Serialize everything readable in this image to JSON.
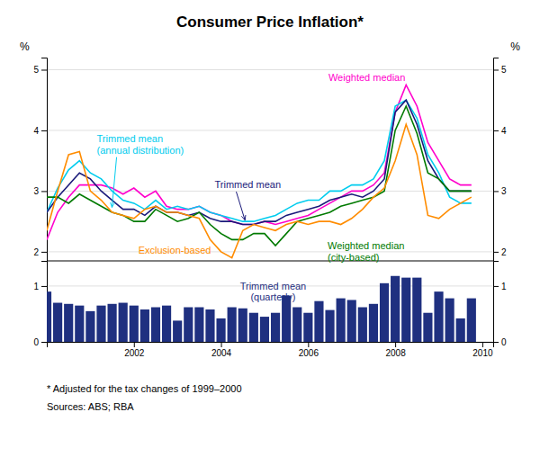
{
  "chart_data": [
    {
      "type": "line",
      "title": "Consumer Price Inflation*",
      "ylabel": "%",
      "y2label": "%",
      "x": [
        2000.0,
        2000.25,
        2000.5,
        2000.75,
        2001.0,
        2001.25,
        2001.5,
        2001.75,
        2002.0,
        2002.25,
        2002.5,
        2002.75,
        2003.0,
        2003.25,
        2003.5,
        2003.75,
        2004.0,
        2004.25,
        2004.5,
        2004.75,
        2005.0,
        2005.25,
        2005.5,
        2005.75,
        2006.0,
        2006.25,
        2006.5,
        2006.75,
        2007.0,
        2007.25,
        2007.5,
        2007.75,
        2008.0,
        2008.25,
        2008.5,
        2008.75,
        2009.0,
        2009.25,
        2009.5,
        2009.75
      ],
      "xlim": [
        2000.0,
        2010.25
      ],
      "ylim": [
        1.85,
        5.2
      ],
      "yticks": [
        2,
        3,
        4,
        5
      ],
      "y2lim": [
        1.85,
        5.2
      ],
      "y2ticks": [
        2,
        3,
        4,
        5
      ],
      "grid": true,
      "tick_labels": "y",
      "series": [
        {
          "name": "Weighted median",
          "color": "#FF00CC",
          "values": [
            2.2,
            2.65,
            2.9,
            3.1,
            3.1,
            3.1,
            3.05,
            2.95,
            3.05,
            2.9,
            3.0,
            2.75,
            2.7,
            2.7,
            2.75,
            2.65,
            2.6,
            2.5,
            2.45,
            2.45,
            2.5,
            2.45,
            2.5,
            2.55,
            2.6,
            2.7,
            2.8,
            2.9,
            3.0,
            3.0,
            3.1,
            3.3,
            4.3,
            4.75,
            4.4,
            3.8,
            3.5,
            3.2,
            3.1,
            3.1
          ]
        },
        {
          "name": "Trimmed mean\n(annual distribution)",
          "color": "#00CCEE",
          "values": [
            2.65,
            3.05,
            3.35,
            3.5,
            3.3,
            3.2,
            3.0,
            2.85,
            2.8,
            2.7,
            2.85,
            2.7,
            2.75,
            2.7,
            2.75,
            2.65,
            2.6,
            2.55,
            2.5,
            2.5,
            2.55,
            2.6,
            2.7,
            2.8,
            2.85,
            2.85,
            3.0,
            3.0,
            3.1,
            3.1,
            3.2,
            3.5,
            4.4,
            4.5,
            4.2,
            3.6,
            3.3,
            2.9,
            2.8,
            2.8
          ]
        },
        {
          "name": "Trimmed mean",
          "color": "#1A1A7A",
          "values": [
            2.65,
            2.9,
            3.1,
            3.3,
            3.2,
            3.0,
            2.85,
            2.7,
            2.7,
            2.6,
            2.75,
            2.65,
            2.65,
            2.6,
            2.65,
            2.55,
            2.5,
            2.5,
            2.45,
            2.45,
            2.5,
            2.5,
            2.6,
            2.65,
            2.7,
            2.75,
            2.85,
            2.9,
            2.95,
            2.9,
            3.0,
            3.2,
            4.3,
            4.5,
            4.1,
            3.5,
            3.2,
            3.0,
            3.0,
            3.0
          ]
        },
        {
          "name": "Weighted median\n(city-based)",
          "color": "#007A00",
          "values": [
            2.9,
            2.9,
            2.8,
            2.95,
            2.85,
            2.75,
            2.65,
            2.6,
            2.5,
            2.5,
            2.7,
            2.6,
            2.5,
            2.55,
            2.65,
            2.45,
            2.3,
            2.2,
            2.2,
            2.3,
            2.3,
            2.1,
            2.3,
            2.5,
            2.55,
            2.6,
            2.65,
            2.75,
            2.8,
            2.85,
            2.9,
            3.0,
            4.0,
            4.4,
            3.95,
            3.3,
            3.2,
            3.0,
            3.0,
            3.0
          ]
        },
        {
          "name": "Exclusion-based",
          "color": "#FF8C00",
          "values": [
            2.35,
            3.0,
            3.6,
            3.65,
            3.0,
            2.85,
            2.65,
            2.6,
            2.55,
            2.7,
            2.75,
            2.65,
            2.65,
            2.6,
            2.55,
            2.2,
            2.0,
            1.9,
            2.35,
            2.45,
            2.4,
            2.35,
            2.45,
            2.5,
            2.45,
            2.5,
            2.5,
            2.45,
            2.55,
            2.7,
            2.9,
            3.05,
            3.5,
            4.1,
            3.6,
            2.6,
            2.55,
            2.7,
            2.8,
            2.9
          ]
        }
      ]
    },
    {
      "type": "bar",
      "x": [
        2000.0,
        2000.25,
        2000.5,
        2000.75,
        2001.0,
        2001.25,
        2001.5,
        2001.75,
        2002.0,
        2002.25,
        2002.5,
        2002.75,
        2003.0,
        2003.25,
        2003.5,
        2003.75,
        2004.0,
        2004.25,
        2004.5,
        2004.75,
        2005.0,
        2005.25,
        2005.5,
        2005.75,
        2006.0,
        2006.25,
        2006.5,
        2006.75,
        2007.0,
        2007.25,
        2007.5,
        2007.75,
        2008.0,
        2008.25,
        2008.5,
        2008.75,
        2009.0,
        2009.25,
        2009.5,
        2009.75
      ],
      "xlim": [
        2000.0,
        2010.25
      ],
      "xticks": [
        2002,
        2004,
        2006,
        2008,
        2010
      ],
      "ylim": [
        0,
        1.45
      ],
      "yticks": [
        0,
        1
      ],
      "y2lim": [
        0,
        1.45
      ],
      "y2ticks": [
        0,
        1
      ],
      "grid": true,
      "series": [
        {
          "name": "Trimmed mean\n(quarterly)",
          "color": "#1F3080",
          "values": [
            0.9,
            0.7,
            0.68,
            0.65,
            0.55,
            0.65,
            0.68,
            0.7,
            0.65,
            0.58,
            0.62,
            0.65,
            0.38,
            0.62,
            0.62,
            0.58,
            0.42,
            0.62,
            0.6,
            0.52,
            0.45,
            0.52,
            0.83,
            0.62,
            0.52,
            0.73,
            0.57,
            0.78,
            0.75,
            0.62,
            0.68,
            1.05,
            1.18,
            1.15,
            1.15,
            0.52,
            0.9,
            0.78,
            0.42,
            0.78
          ]
        }
      ],
      "annotations": [
        "* Adjusted for the tax changes of 1999–2000",
        "Sources: ABS; RBA"
      ]
    }
  ]
}
